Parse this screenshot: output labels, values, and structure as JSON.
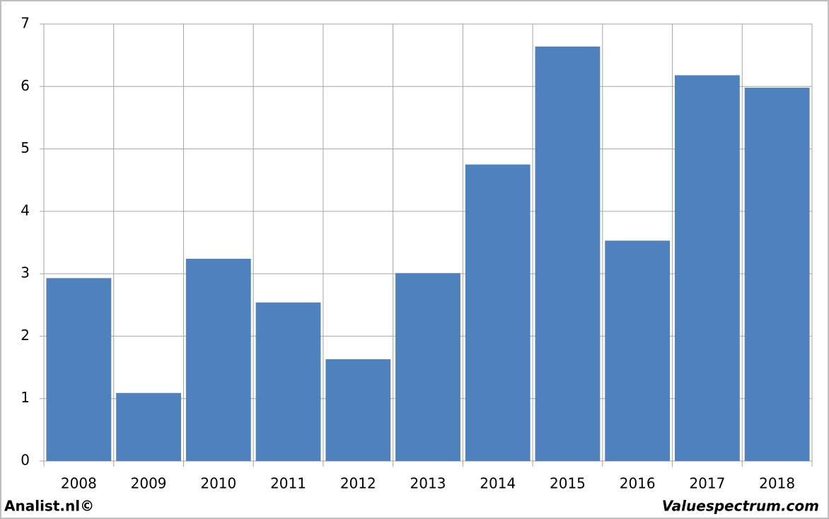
{
  "chart_data": {
    "type": "bar",
    "categories": [
      "2008",
      "2009",
      "2010",
      "2011",
      "2012",
      "2013",
      "2014",
      "2015",
      "2016",
      "2017",
      "2018"
    ],
    "values": [
      2.93,
      1.09,
      3.24,
      2.54,
      1.63,
      3.01,
      4.75,
      6.64,
      3.53,
      6.18,
      5.98
    ],
    "color": "#4f81bd",
    "ylim": [
      0,
      7
    ],
    "yticks": [
      0,
      1,
      2,
      3,
      4,
      5,
      6,
      7
    ],
    "grid": true
  },
  "footer": {
    "left": "Analist.nl©",
    "right": "Valuespectrum.com"
  }
}
